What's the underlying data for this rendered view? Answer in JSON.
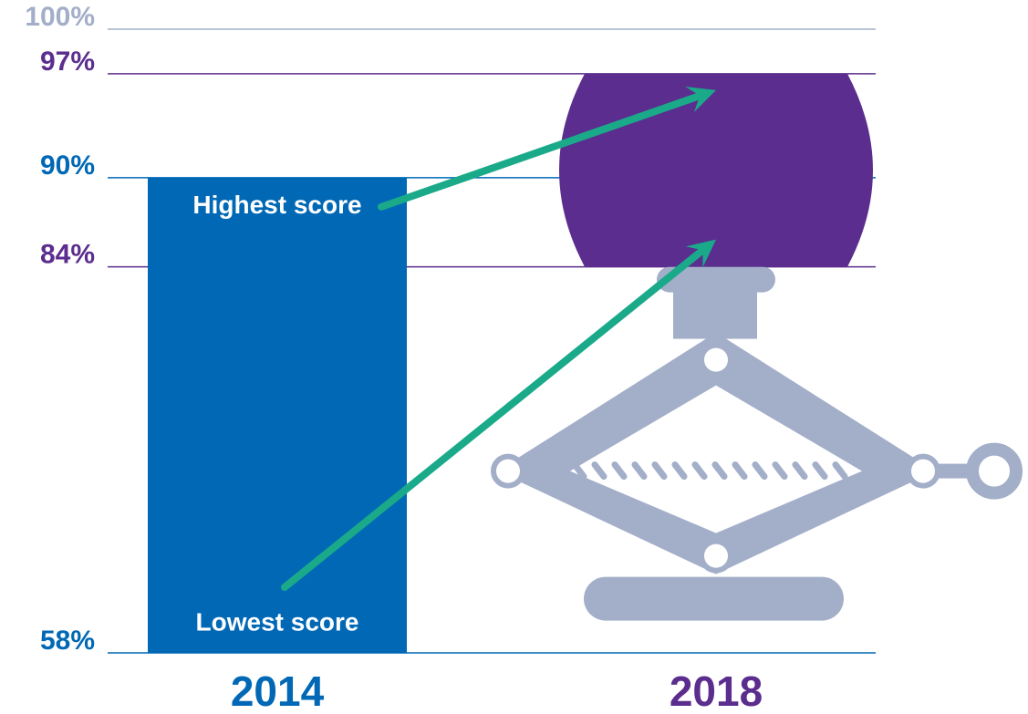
{
  "chart_data": {
    "type": "range_bar",
    "categories": [
      "2014",
      "2018"
    ],
    "colors": [
      "#0068b5",
      "#5b2d8e"
    ],
    "series": [
      {
        "name": "Lowest score",
        "values": [
          58,
          84
        ]
      },
      {
        "name": "Highest score",
        "values": [
          90,
          97
        ]
      }
    ],
    "ylim": [
      58,
      100
    ],
    "yticks": [
      {
        "value": 58,
        "label": "58%"
      },
      {
        "value": 84,
        "label": "84%"
      },
      {
        "value": 90,
        "label": "90%"
      },
      {
        "value": 97,
        "label": "97%"
      },
      {
        "value": 100,
        "label": "100%"
      }
    ],
    "ytick_colors": [
      "#0068b5",
      "#5b2d8e",
      "#0068b5",
      "#5b2d8e",
      "#a3afc9"
    ],
    "grid": true
  }
}
